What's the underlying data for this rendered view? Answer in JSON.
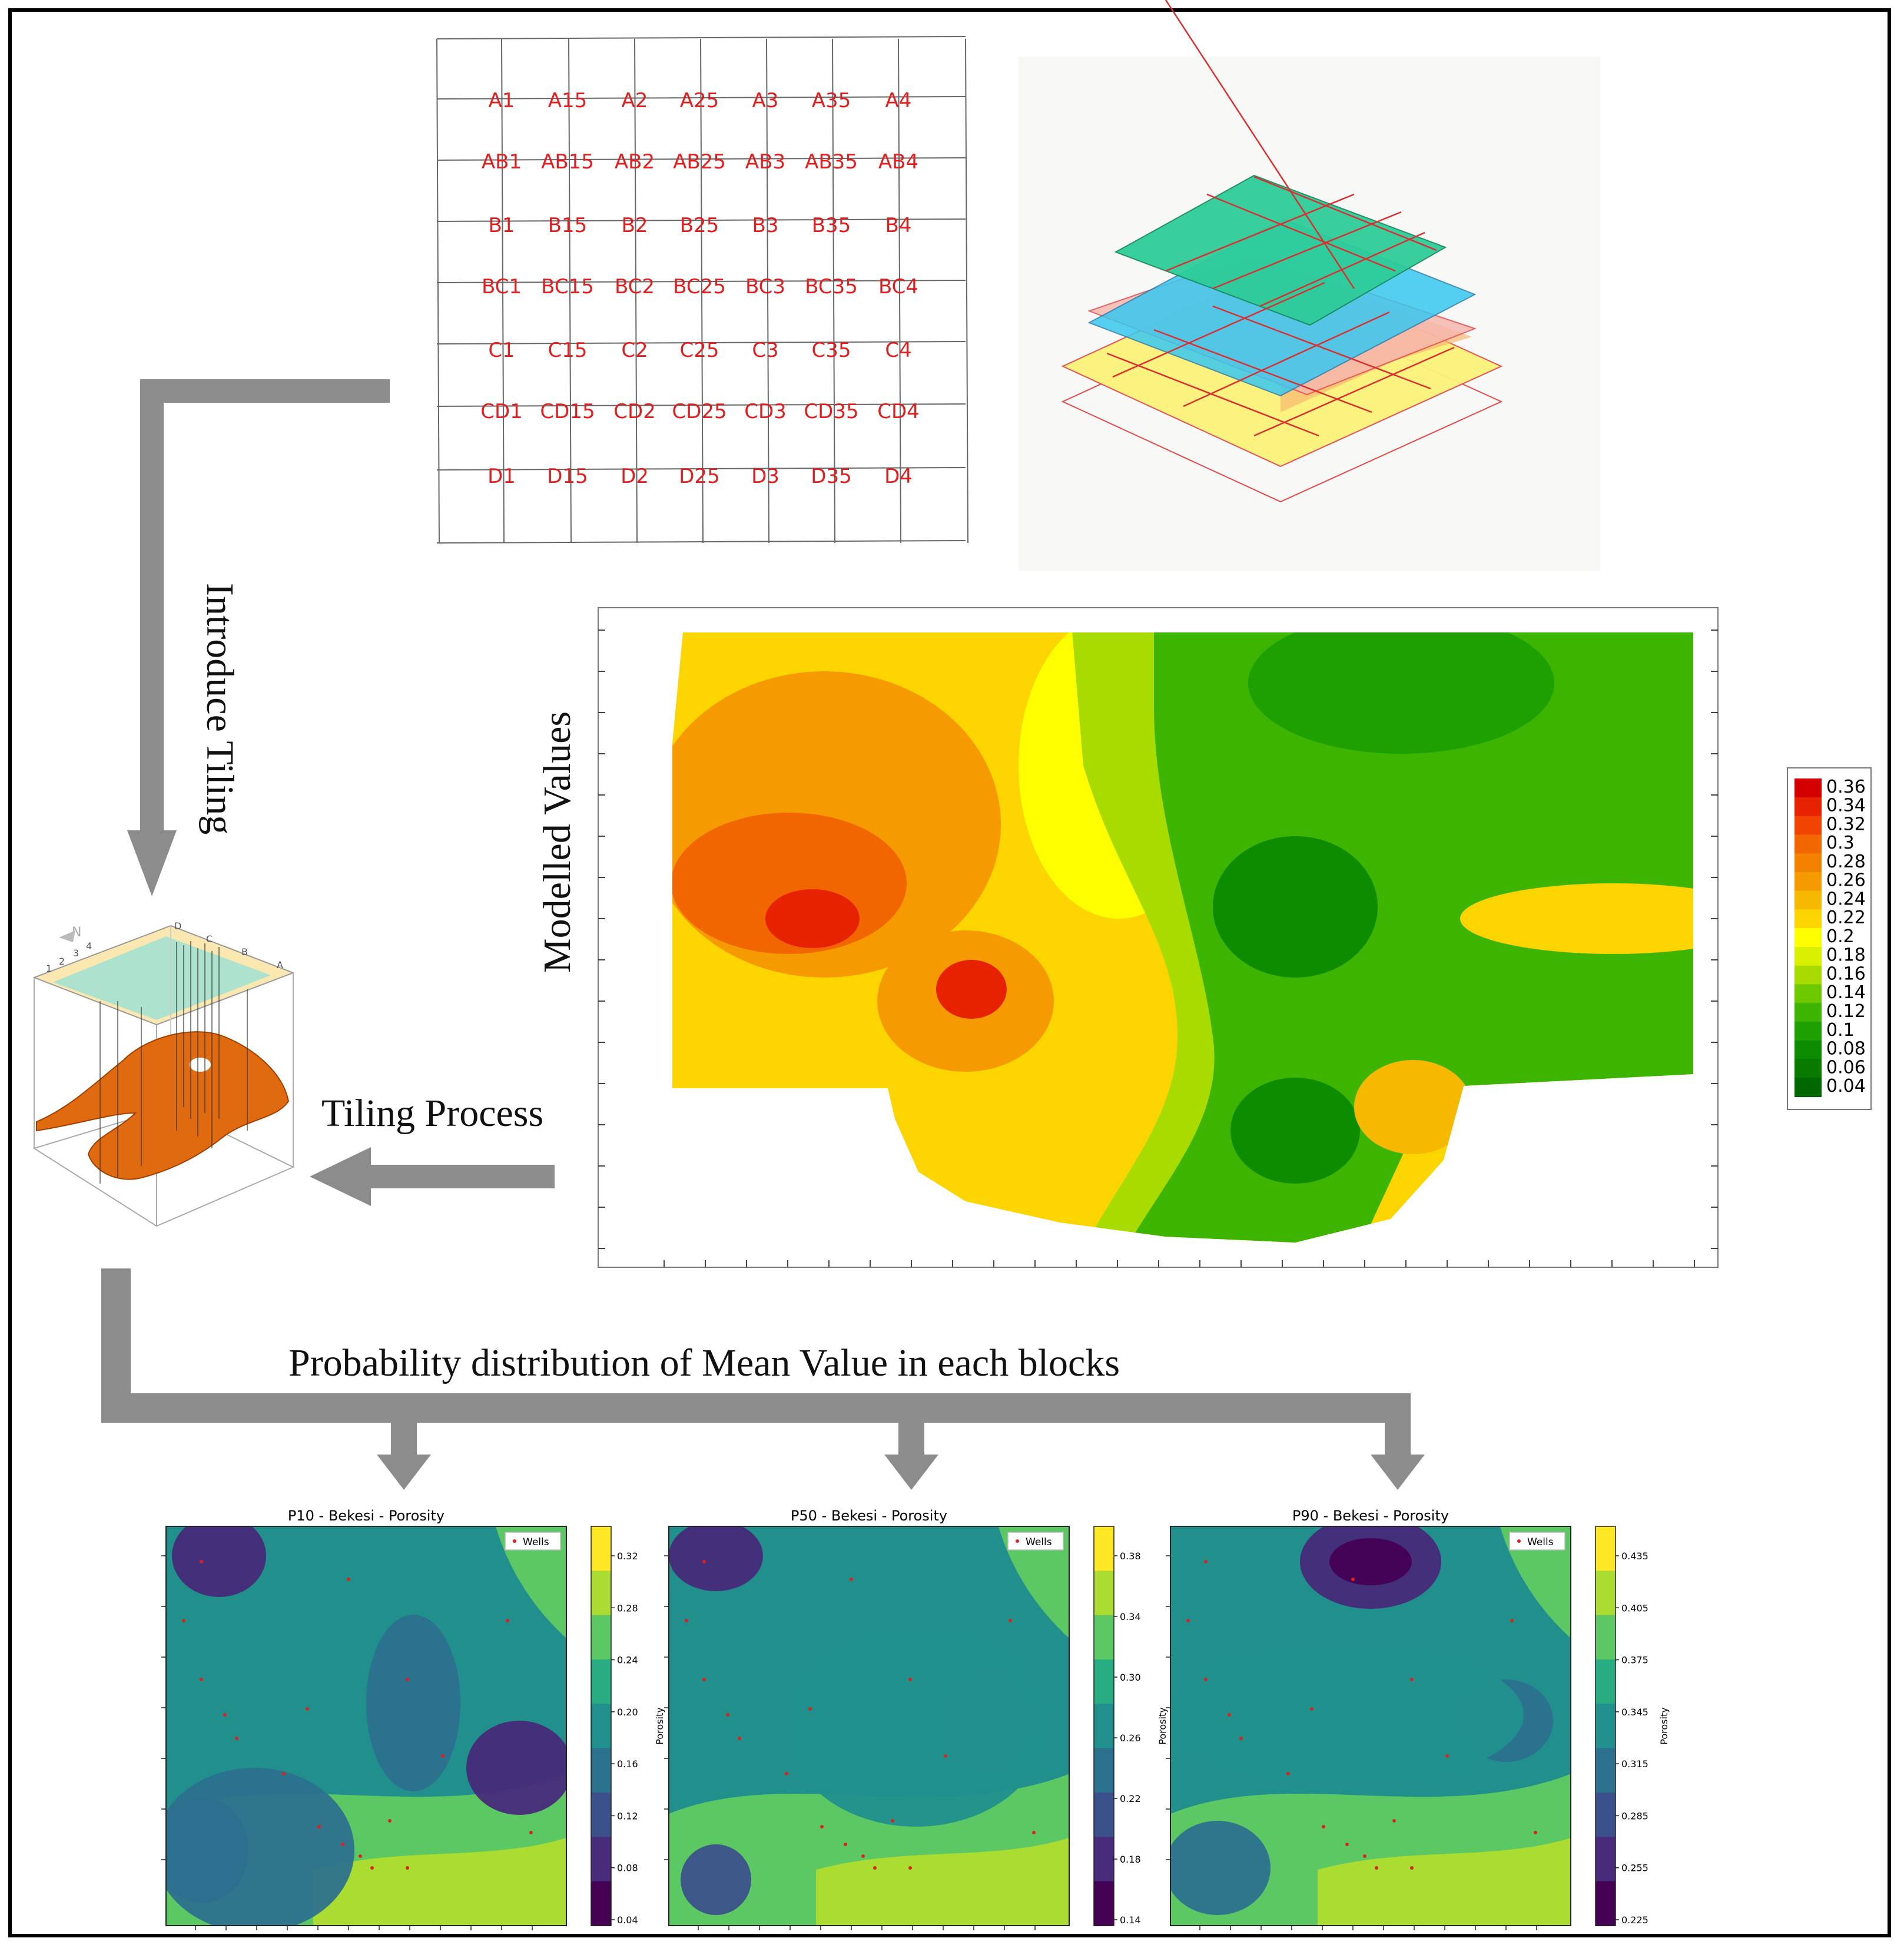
{
  "tile_grid": {
    "rows": [
      [
        "A1",
        "A15",
        "A2",
        "A25",
        "A3",
        "A35",
        "A4"
      ],
      [
        "AB1",
        "AB15",
        "AB2",
        "AB25",
        "AB3",
        "AB35",
        "AB4"
      ],
      [
        "B1",
        "B15",
        "B2",
        "B25",
        "B3",
        "B35",
        "B4"
      ],
      [
        "BC1",
        "BC15",
        "BC2",
        "BC25",
        "BC3",
        "BC35",
        "BC4"
      ],
      [
        "C1",
        "C15",
        "C2",
        "C25",
        "C3",
        "C35",
        "C4"
      ],
      [
        "CD1",
        "CD15",
        "CD2",
        "CD25",
        "CD3",
        "CD35",
        "CD4"
      ],
      [
        "D1",
        "D15",
        "D2",
        "D25",
        "D3",
        "D35",
        "D4"
      ]
    ]
  },
  "labels": {
    "introduce_tiling": "Introduce Tiling",
    "modelled_values": "Modelled Values",
    "tiling_process": "Tiling Process",
    "probability": "Probability distribution of Mean Value in each blocks"
  },
  "legend": {
    "values": [
      "0.36",
      "0.34",
      "0.32",
      "0.3",
      "0.28",
      "0.26",
      "0.24",
      "0.22",
      "0.2",
      "0.18",
      "0.16",
      "0.14",
      "0.12",
      "0.1",
      "0.08",
      "0.06",
      "0.04"
    ],
    "colors": [
      "#d40000",
      "#e62200",
      "#f04400",
      "#f26600",
      "#f28200",
      "#f59a00",
      "#f7b800",
      "#fcd500",
      "#ffff00",
      "#d8f000",
      "#a8dc00",
      "#6ec800",
      "#3cb400",
      "#1ea000",
      "#0e8c00",
      "#087a00",
      "#006600"
    ]
  },
  "panels": [
    {
      "title": "P10 - Bekesi - Porosity",
      "ticks": [
        "0.32",
        "0.28",
        "0.24",
        "0.20",
        "0.16",
        "0.12",
        "0.08",
        "0.04"
      ]
    },
    {
      "title": "P50 - Bekesi - Porosity",
      "ticks": [
        "0.38",
        "0.34",
        "0.30",
        "0.26",
        "0.22",
        "0.18",
        "0.14"
      ]
    },
    {
      "title": "P90 - Bekesi - Porosity",
      "ticks": [
        "0.435",
        "0.405",
        "0.375",
        "0.345",
        "0.315",
        "0.285",
        "0.255",
        "0.225"
      ]
    }
  ],
  "panel_common": {
    "legend_label": "Wells",
    "colorbar_label": "Porosity"
  },
  "cube_axis_labels": [
    "1",
    "2",
    "3",
    "4",
    "D",
    "C",
    "B",
    "A"
  ],
  "cube_north_label": "N"
}
